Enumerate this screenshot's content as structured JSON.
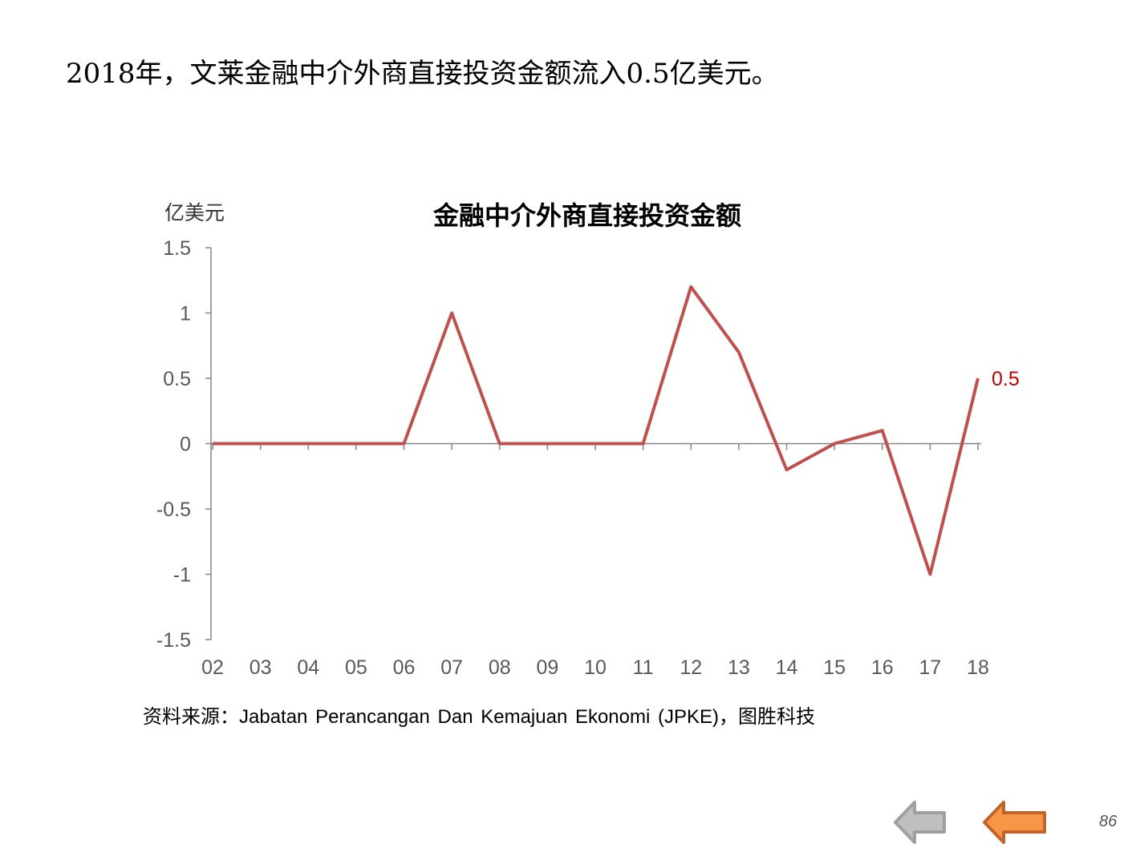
{
  "headline": "2018年，文莱金融中介外商直接投资金额流入0.5亿美元。",
  "source": "资料来源：Jabatan Perancangan Dan Kemajuan Ekonomi (JPKE)，图胜科技",
  "page_number": "86",
  "nav": {
    "prev_icon": "arrow-left-gray",
    "next_icon": "arrow-left-orange"
  },
  "colors": {
    "line": "#C0504D",
    "label": "#C00000",
    "axis": "#868686",
    "tick_text": "#595959"
  },
  "chart_data": {
    "type": "line",
    "title": "金融中介外商直接投资金额",
    "ylabel": "亿美元",
    "xlabel": "",
    "categories": [
      "02",
      "03",
      "04",
      "05",
      "06",
      "07",
      "08",
      "09",
      "10",
      "11",
      "12",
      "13",
      "14",
      "15",
      "16",
      "17",
      "18"
    ],
    "series": [
      {
        "name": "金融中介外商直接投资金额",
        "values": [
          0,
          0,
          0,
          0,
          0,
          1,
          0,
          0,
          0,
          0,
          1.2,
          0.7,
          -0.2,
          0,
          0.1,
          -1,
          0.5
        ]
      }
    ],
    "ylim": [
      -1.5,
      1.5
    ],
    "yticks": [
      "1.5",
      "1",
      "0.5",
      "0",
      "-0.5",
      "-1",
      "-1.5"
    ],
    "data_labels": [
      {
        "category": "18",
        "text": "0.5"
      }
    ],
    "grid": false,
    "legend": "none"
  }
}
